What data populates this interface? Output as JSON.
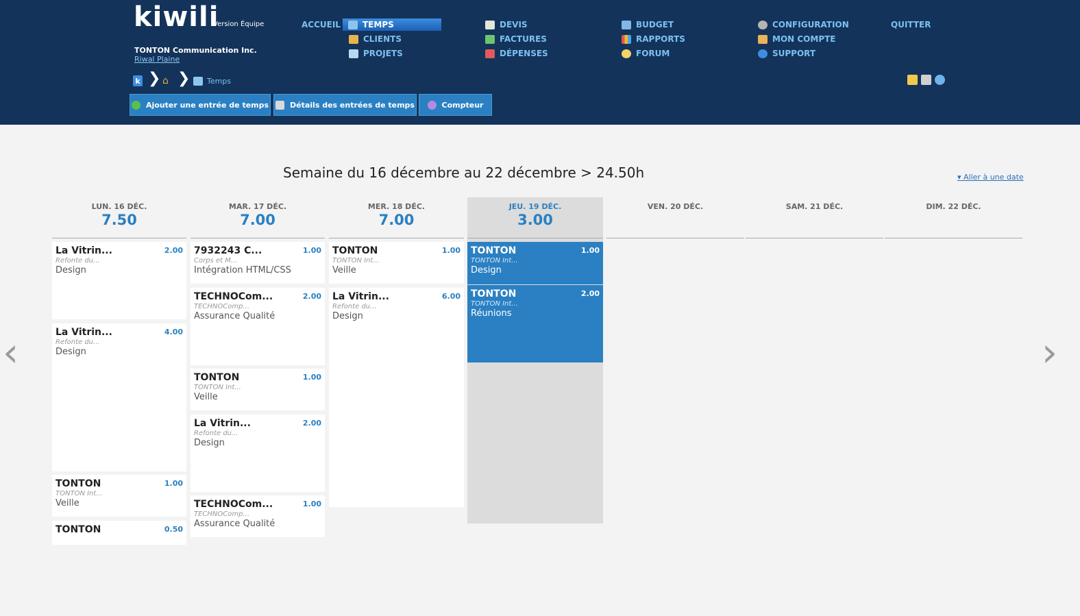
{
  "app": {
    "logo": "kiwili",
    "version": "Version Équipe",
    "company": "TONTON Communication Inc.",
    "user": "Riwal Plaine"
  },
  "nav": {
    "accueil": "ACCUEIL",
    "temps": "TEMPS",
    "clients": "CLIENTS",
    "projets": "PROJETS",
    "devis": "DEVIS",
    "factures": "FACTURES",
    "depenses": "DÉPENSES",
    "budget": "BUDGET",
    "rapports": "RAPPORTS",
    "forum": "FORUM",
    "configuration": "CONFIGURATION",
    "mon_compte": "MON COMPTE",
    "support": "SUPPORT",
    "quitter": "QUITTER"
  },
  "breadcrumb": {
    "current": "Temps"
  },
  "actions": {
    "add": "Ajouter une entrée de temps",
    "details": "Détails des entrées de temps",
    "counter": "Compteur"
  },
  "week": {
    "title": "Semaine du 16 décembre au 22 décembre > 24.50h",
    "goto": "Aller à une date",
    "days": [
      {
        "name": "LUN. 16 déc.",
        "total": "7.50",
        "entries": [
          {
            "client": "La Vitrin...",
            "sub": "Refonte du...",
            "task": "Design",
            "hours": "2.00"
          },
          {
            "client": "La Vitrin...",
            "sub": "Refonte du...",
            "task": "Design",
            "hours": "4.00"
          },
          {
            "client": "TONTON",
            "sub": "TONTON Int...",
            "task": "Veille",
            "hours": "1.00"
          },
          {
            "client": "TONTON",
            "sub": "",
            "task": "",
            "hours": "0.50"
          }
        ]
      },
      {
        "name": "MAR. 17 déc.",
        "total": "7.00",
        "entries": [
          {
            "client": "7932243 C...",
            "sub": "Corps et M...",
            "task": "Intégration HTML/CSS",
            "hours": "1.00"
          },
          {
            "client": "TECHNOCom...",
            "sub": "TECHNOComp...",
            "task": "Assurance Qualité",
            "hours": "2.00"
          },
          {
            "client": "TONTON",
            "sub": "TONTON Int...",
            "task": "Veille",
            "hours": "1.00"
          },
          {
            "client": "La Vitrin...",
            "sub": "Refonte du...",
            "task": "Design",
            "hours": "2.00"
          },
          {
            "client": "TECHNOCom...",
            "sub": "TECHNOComp...",
            "task": "Assurance Qualité",
            "hours": "1.00"
          }
        ]
      },
      {
        "name": "MER. 18 déc.",
        "total": "7.00",
        "entries": [
          {
            "client": "TONTON",
            "sub": "TONTON Int...",
            "task": "Veille",
            "hours": "1.00"
          },
          {
            "client": "La Vitrin...",
            "sub": "Refonte du...",
            "task": "Design",
            "hours": "6.00"
          }
        ]
      },
      {
        "name": "JEU. 19 déc.",
        "total": "3.00",
        "entries": [
          {
            "client": "TONTON",
            "sub": "TONTON Int...",
            "task": "Design",
            "hours": "1.00"
          },
          {
            "client": "TONTON",
            "sub": "TONTON Int...",
            "task": "Réunions",
            "hours": "2.00"
          }
        ]
      },
      {
        "name": "VEN. 20 déc.",
        "total": "",
        "entries": []
      },
      {
        "name": "SAM. 21 déc.",
        "total": "",
        "entries": []
      },
      {
        "name": "DIM. 22 déc.",
        "total": "",
        "entries": []
      }
    ]
  },
  "nav_arrows": {
    "prev": "‹",
    "next": "›"
  }
}
